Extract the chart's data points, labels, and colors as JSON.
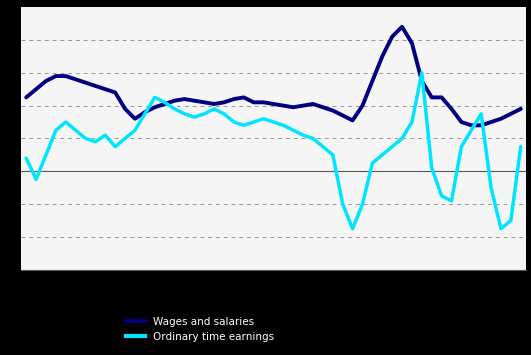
{
  "title": "",
  "navy_line": [
    4.5,
    5.0,
    5.5,
    5.8,
    5.8,
    5.6,
    5.4,
    5.2,
    5.0,
    4.8,
    3.8,
    3.2,
    3.6,
    3.9,
    4.1,
    4.3,
    4.4,
    4.3,
    4.2,
    4.1,
    4.2,
    4.4,
    4.5,
    4.2,
    4.2,
    4.1,
    4.0,
    3.9,
    4.0,
    4.1,
    3.9,
    3.7,
    3.4,
    3.1,
    4.0,
    5.5,
    7.0,
    8.2,
    8.8,
    7.8,
    5.5,
    4.5,
    4.5,
    3.8,
    3.0,
    2.8,
    2.8,
    3.0,
    3.2,
    3.5,
    3.8
  ],
  "cyan_line": [
    0.8,
    -0.5,
    1.0,
    2.5,
    3.0,
    2.5,
    2.0,
    1.8,
    2.2,
    1.5,
    2.0,
    2.5,
    3.5,
    4.5,
    4.2,
    3.8,
    3.5,
    3.3,
    3.5,
    3.8,
    3.5,
    3.0,
    2.8,
    3.0,
    3.2,
    3.0,
    2.8,
    2.5,
    2.2,
    2.0,
    1.5,
    1.0,
    -2.0,
    -3.5,
    -2.0,
    0.5,
    1.0,
    1.5,
    2.0,
    3.0,
    6.0,
    0.2,
    -1.5,
    -1.8,
    1.5,
    2.5,
    3.5,
    -1.0,
    -3.5,
    -3.0,
    1.5
  ],
  "navy_color": "#000080",
  "cyan_color": "#00E5FF",
  "background_color": "#FFFFFF",
  "plot_bg": "#F5F5F5",
  "grid_color": "#999999",
  "ylim": [
    -6,
    10
  ],
  "ytick_positions": [
    -4,
    -2,
    0,
    2,
    4,
    6,
    8
  ],
  "n_points": 51,
  "navy_label": "Wages and salaries",
  "cyan_label": "Ordinary time earnings",
  "linewidth_navy": 2.8,
  "linewidth_cyan": 2.5
}
